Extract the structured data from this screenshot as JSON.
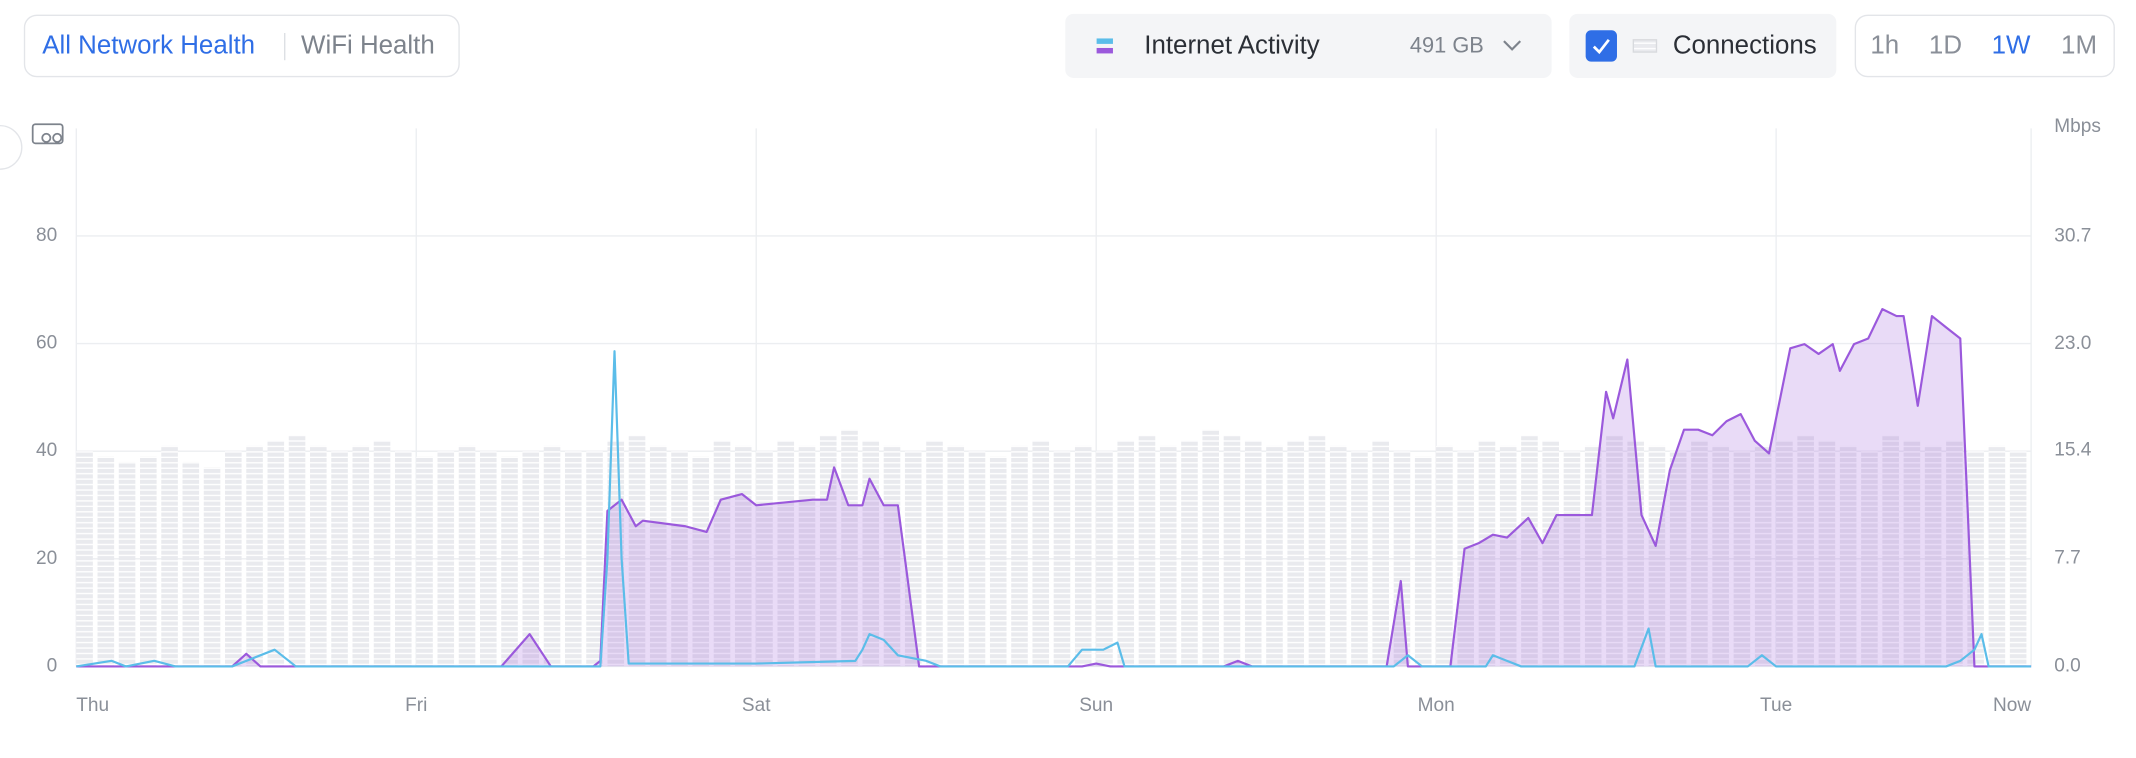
{
  "toolbar": {
    "tabs": [
      "All Network Health",
      "WiFi Health"
    ],
    "activity": {
      "label": "Internet Activity",
      "total": "491 GB"
    },
    "connections_toggle": "Connections",
    "ranges": [
      "1h",
      "1D",
      "1W",
      "1M"
    ]
  },
  "chart_data": {
    "type": "line",
    "xlim": [
      0,
      138
    ],
    "xticks": [
      {
        "value": 0,
        "label": "Thu"
      },
      {
        "value": 24,
        "label": "Fri"
      },
      {
        "value": 48,
        "label": "Sat"
      },
      {
        "value": 72,
        "label": "Sun"
      },
      {
        "value": 96,
        "label": "Mon"
      },
      {
        "value": 120,
        "label": "Tue"
      },
      {
        "value": 138,
        "label": "Now"
      }
    ],
    "ylim": [
      0,
      100
    ],
    "yticks": [
      0,
      20,
      40,
      60,
      80
    ],
    "y2label": "Mbps",
    "y2lim": [
      0,
      38.4
    ],
    "y2ticks": [
      {
        "value": 0,
        "label": "0.0"
      },
      7.7,
      15.4,
      {
        "value": 23,
        "label": "23.0"
      },
      30.7
    ],
    "grid": true,
    "series": [
      {
        "name": "Connections",
        "type": "bar",
        "color": "#e9eaee",
        "x": [
          0,
          1.5,
          3,
          4.5,
          6,
          7.5,
          9,
          10.5,
          12,
          13.5,
          15,
          16.5,
          18,
          19.5,
          21,
          22.5,
          24,
          25.5,
          27,
          28.5,
          30,
          31.5,
          33,
          34.5,
          36,
          37.5,
          39,
          40.5,
          42,
          43.5,
          45,
          46.5,
          48,
          49.5,
          51,
          52.5,
          54,
          55.5,
          57,
          58.5,
          60,
          61.5,
          63,
          64.5,
          66,
          67.5,
          69,
          70.5,
          72,
          73.5,
          75,
          76.5,
          78,
          79.5,
          81,
          82.5,
          84,
          85.5,
          87,
          88.5,
          90,
          91.5,
          93,
          94.5,
          96,
          97.5,
          99,
          100.5,
          102,
          103.5,
          105,
          106.5,
          108,
          109.5,
          111,
          112.5,
          114,
          115.5,
          117,
          118.5,
          120,
          121.5,
          123,
          124.5,
          126,
          127.5,
          129,
          130.5,
          132,
          133.5,
          135,
          136.5
        ],
        "values": [
          40,
          39,
          38,
          39,
          41,
          38,
          37,
          40,
          41,
          42,
          43,
          41,
          40,
          41,
          42,
          40,
          39,
          40,
          41,
          40,
          39,
          40,
          41,
          40,
          40,
          42,
          43,
          41,
          40,
          39,
          42,
          41,
          40,
          42,
          41,
          43,
          44,
          42,
          41,
          40,
          42,
          41,
          40,
          39,
          41,
          42,
          40,
          41,
          40,
          42,
          43,
          41,
          42,
          44,
          43,
          42,
          41,
          42,
          43,
          41,
          40,
          42,
          40,
          39,
          41,
          40,
          42,
          41,
          43,
          42,
          40,
          41,
          43,
          42,
          41,
          40,
          42,
          41,
          40,
          41,
          42,
          43,
          42,
          41,
          40,
          43,
          42,
          41,
          42,
          40,
          41,
          40
        ]
      },
      {
        "type": "area",
        "axis": "y2",
        "color": "#9b59dc",
        "x": [
          0,
          11,
          12,
          13,
          30,
          32,
          33.5,
          36.5,
          37,
          37.5,
          38.5,
          39.5,
          40,
          43,
          44.5,
          45.5,
          47,
          48,
          52,
          53,
          53.5,
          54.5,
          55.5,
          56,
          57,
          58,
          58.5,
          59.5,
          71,
          72,
          73,
          81,
          82,
          83,
          92.5,
          93.5,
          94,
          97,
          98,
          99,
          100,
          101,
          102.5,
          103.5,
          104.5,
          107,
          108,
          108.5,
          109.5,
          110.5,
          111.5,
          112.5,
          113.5,
          114.5,
          115.5,
          116.5,
          117.5,
          118.5,
          119.5,
          121,
          122,
          123,
          124,
          124.5,
          125.5,
          126.5,
          127.5,
          128.5,
          129,
          130,
          131,
          132,
          133,
          134,
          138
        ],
        "values": [
          0,
          0,
          0.9,
          0,
          0,
          2.3,
          0,
          0,
          0.4,
          11.1,
          11.9,
          10.0,
          10.4,
          10.0,
          9.6,
          11.9,
          12.3,
          11.5,
          11.9,
          11.9,
          14.2,
          11.5,
          11.5,
          13.4,
          11.5,
          11.5,
          7.7,
          0,
          0,
          0.2,
          0,
          0,
          0.4,
          0,
          0,
          6.1,
          0,
          0,
          8.4,
          8.8,
          9.4,
          9.2,
          10.6,
          8.8,
          10.8,
          10.8,
          19.6,
          17.7,
          21.9,
          10.8,
          8.6,
          14.0,
          16.9,
          16.9,
          16.5,
          17.5,
          18.0,
          16.1,
          15.2,
          22.7,
          23.0,
          22.3,
          23.0,
          21.1,
          23.0,
          23.4,
          25.5,
          25.0,
          25.0,
          18.6,
          25.0,
          24.2,
          23.4,
          0,
          0
        ]
      },
      {
        "type": "line",
        "axis": "y2",
        "color": "#5bbde9",
        "x": [
          0,
          2.5,
          3.5,
          5.5,
          7,
          11,
          14,
          15.5,
          32,
          37,
          37.5,
          38,
          38.5,
          39,
          48,
          55,
          55.5,
          56,
          57,
          58,
          60,
          61,
          70,
          71,
          72.5,
          73.5,
          74,
          93,
          94,
          95,
          99.5,
          100,
          101,
          102,
          110,
          111,
          111.5,
          118,
          119,
          120,
          132,
          133,
          134,
          134.5,
          135,
          138
        ],
        "values": [
          0,
          0.4,
          0,
          0.4,
          0,
          0,
          1.2,
          0,
          0,
          0,
          7.7,
          22.5,
          7.7,
          0.2,
          0.2,
          0.4,
          1.2,
          2.3,
          1.9,
          0.8,
          0.4,
          0,
          0,
          1.2,
          1.2,
          1.7,
          0,
          0,
          0.8,
          0,
          0,
          0.8,
          0.4,
          0,
          0,
          2.7,
          0,
          0,
          0.8,
          0,
          0,
          0.4,
          1.2,
          2.3,
          0,
          0
        ]
      }
    ]
  }
}
